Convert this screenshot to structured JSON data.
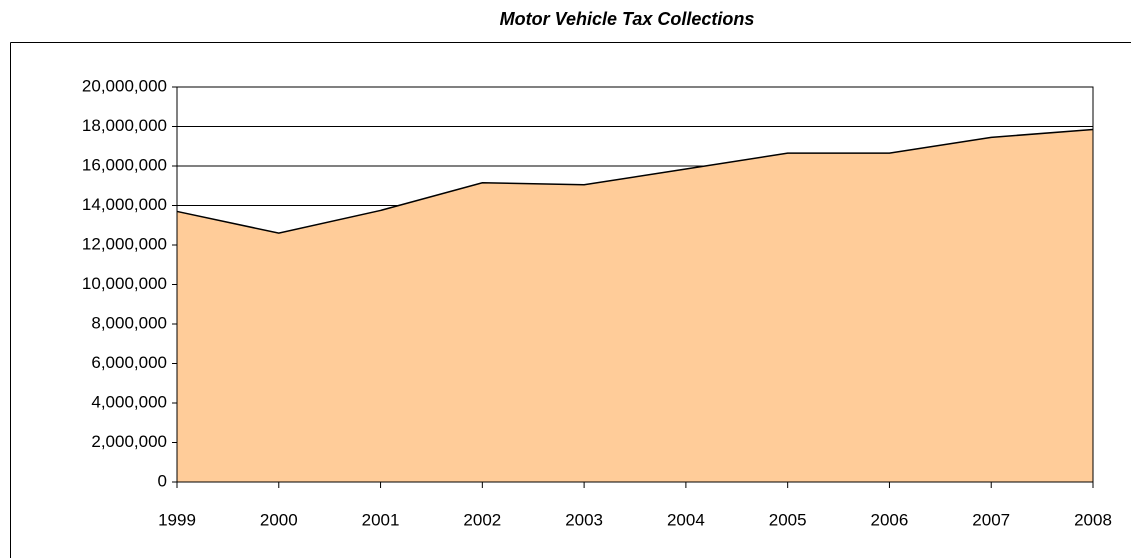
{
  "chart_data": {
    "type": "area",
    "title": "Motor Vehicle Tax Collections",
    "categories": [
      "1999",
      "2000",
      "2001",
      "2002",
      "2003",
      "2004",
      "2005",
      "2006",
      "2007",
      "2008"
    ],
    "values": [
      13700000,
      12600000,
      13750000,
      15150000,
      15050000,
      15850000,
      16650000,
      16650000,
      17450000,
      17850000
    ],
    "color": "#ffcc99",
    "ylim": [
      0,
      20000000
    ],
    "yticks": [
      0,
      {
        "value": 2000000,
        "label": "2,000,000"
      },
      {
        "value": 4000000,
        "label": "4,000,000"
      },
      {
        "value": 6000000,
        "label": "6,000,000"
      },
      {
        "value": 8000000,
        "label": "8,000,000"
      },
      {
        "value": 10000000,
        "label": "10,000,000"
      },
      {
        "value": 12000000,
        "label": "12,000,000"
      },
      {
        "value": 14000000,
        "label": "14,000,000"
      },
      {
        "value": 16000000,
        "label": "16,000,000"
      },
      {
        "value": 18000000,
        "label": "18,000,000"
      },
      {
        "value": 20000000,
        "label": "20,000,000"
      }
    ],
    "grid": true
  }
}
